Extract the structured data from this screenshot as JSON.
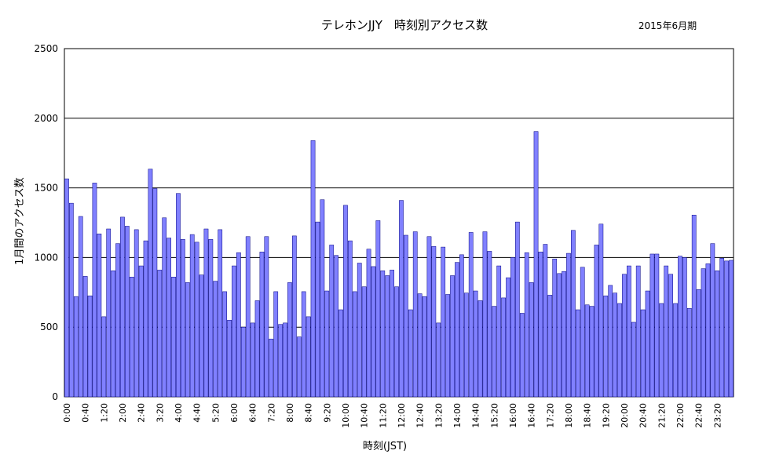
{
  "chart_data": {
    "type": "bar",
    "title": "テレホンJJY　時刻別アクセス数",
    "subtitle": "2015年6月期",
    "xlabel": "時刻(JST)",
    "ylabel": "1月間のアクセス数",
    "ylim": [
      0,
      2500
    ],
    "yticks": [
      "0",
      "500",
      "1000",
      "1500",
      "2000",
      "2500"
    ],
    "grid": "horizontal",
    "legend": "none",
    "bar_color": "#8080ff",
    "bar_edge": "#000080",
    "tick_labels": [
      "0:00",
      "0:40",
      "1:20",
      "2:00",
      "2:40",
      "3:20",
      "4:00",
      "4:40",
      "5:20",
      "6:00",
      "6:40",
      "7:20",
      "8:00",
      "8:40",
      "9:20",
      "10:00",
      "10:40",
      "11:20",
      "12:00",
      "12:40",
      "13:20",
      "14:00",
      "14:40",
      "15:20",
      "16:00",
      "16:40",
      "17:20",
      "18:00",
      "18:40",
      "19:20",
      "20:00",
      "20:40",
      "21:20",
      "22:00",
      "22:40",
      "23:20"
    ],
    "values": [
      1565,
      1390,
      720,
      1295,
      865,
      725,
      1535,
      1170,
      575,
      1205,
      905,
      1100,
      1290,
      1225,
      860,
      1200,
      940,
      1120,
      1635,
      1495,
      910,
      1285,
      1140,
      860,
      1460,
      1130,
      820,
      1165,
      1110,
      875,
      1205,
      1130,
      830,
      1200,
      755,
      550,
      940,
      1035,
      500,
      1150,
      530,
      690,
      1040,
      1150,
      415,
      755,
      520,
      530,
      820,
      1155,
      430,
      755,
      575,
      1840,
      1255,
      1415,
      760,
      1090,
      1015,
      625,
      1375,
      1120,
      755,
      960,
      790,
      1060,
      935,
      1265,
      905,
      870,
      910,
      790,
      1410,
      1160,
      625,
      1185,
      740,
      720,
      1150,
      1080,
      530,
      1075,
      735,
      870,
      965,
      1020,
      745,
      1180,
      760,
      690,
      1185,
      1045,
      650,
      940,
      710,
      855,
      1000,
      1255,
      600,
      1035,
      820,
      1905,
      1040,
      1095,
      730,
      990,
      885,
      900,
      1030,
      1195,
      625,
      930,
      660,
      650,
      1090,
      1240,
      725,
      800,
      745,
      670,
      880,
      940,
      535,
      940,
      625,
      760,
      1025,
      1025,
      670,
      940,
      880,
      670,
      1010,
      1000,
      635,
      1305,
      770,
      920,
      955,
      1100,
      905,
      995,
      975,
      980
    ]
  }
}
